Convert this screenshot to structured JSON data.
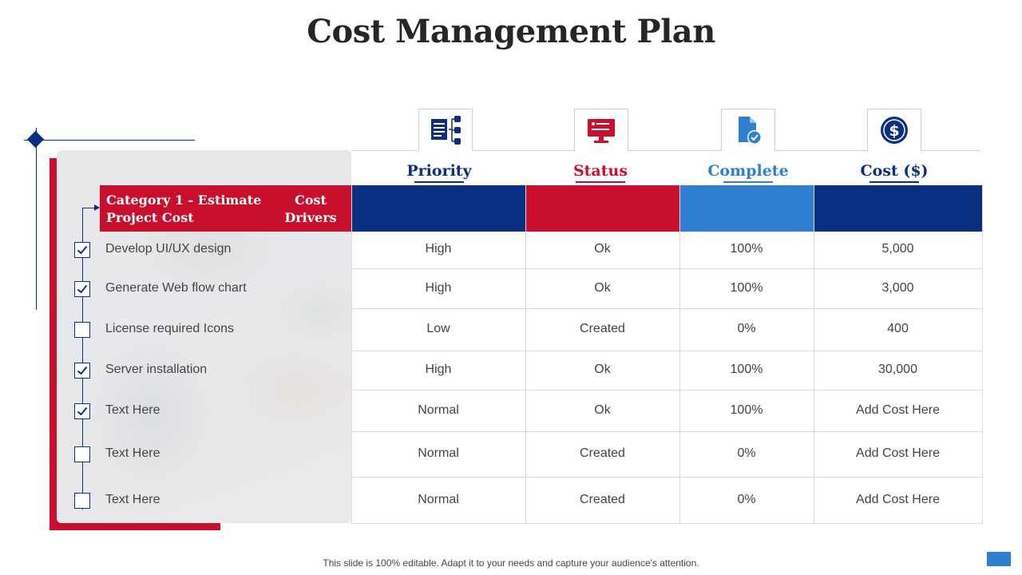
{
  "title": "Cost Management Plan",
  "category": {
    "col1": "Category 1  - Estimate Project Cost",
    "col2": "Cost Drivers"
  },
  "columns": [
    {
      "label": "Priority",
      "color": "#0b2f80",
      "icon": "document-list-icon"
    },
    {
      "label": "Status",
      "color": "#c8102e",
      "icon": "monitor-icon"
    },
    {
      "label": "Complete",
      "color": "#2e7fd0",
      "icon": "file-check-icon"
    },
    {
      "label": "Cost ($)",
      "color": "#0b2f80",
      "icon": "dollar-coin-icon"
    }
  ],
  "rows": [
    {
      "label": "Develop UI/UX design",
      "checked": true,
      "priority": "High",
      "status": "Ok",
      "complete": "100%",
      "cost": "5,000"
    },
    {
      "label": "Generate Web flow chart",
      "checked": true,
      "priority": "High",
      "status": "Ok",
      "complete": "100%",
      "cost": "3,000"
    },
    {
      "label": "License required Icons",
      "checked": false,
      "priority": "Low",
      "status": "Created",
      "complete": "0%",
      "cost": "400"
    },
    {
      "label": "Server installation",
      "checked": true,
      "priority": "High",
      "status": "Ok",
      "complete": "100%",
      "cost": "30,000"
    },
    {
      "label": "Text Here",
      "checked": true,
      "priority": "Normal",
      "status": "Ok",
      "complete": "100%",
      "cost": "Add Cost Here"
    },
    {
      "label": "Text Here",
      "checked": false,
      "priority": "Normal",
      "status": "Created",
      "complete": "0%",
      "cost": "Add Cost Here"
    },
    {
      "label": "Text Here",
      "checked": false,
      "priority": "Normal",
      "status": "Created",
      "complete": "0%",
      "cost": "Add Cost Here"
    }
  ],
  "footer": "This slide is 100% editable. Adapt it to your needs and capture your audience's attention.",
  "colors": {
    "blue": "#0b2f80",
    "red": "#c8102e",
    "light_blue": "#2e7fd0"
  }
}
